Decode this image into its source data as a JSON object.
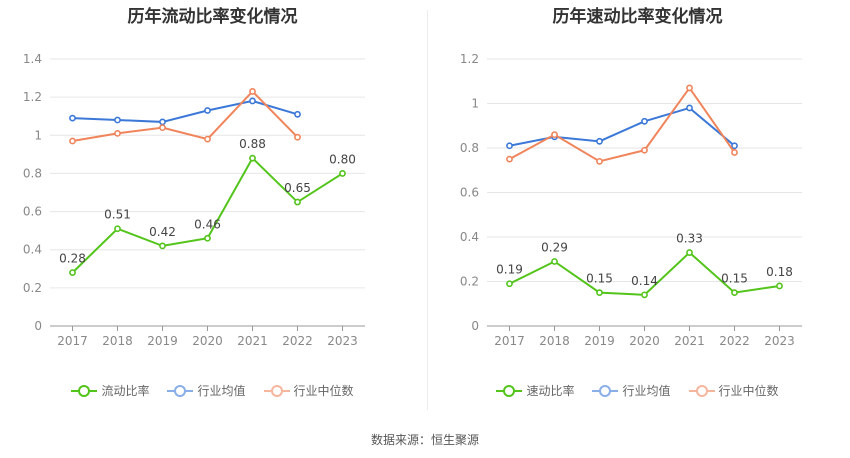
{
  "source_text": "数据来源：恒生聚源",
  "chart_data": [
    {
      "type": "line",
      "title": "历年流动比率变化情况",
      "categories": [
        "2017",
        "2018",
        "2019",
        "2020",
        "2021",
        "2022",
        "2023"
      ],
      "ylim": [
        0,
        1.4
      ],
      "yticks": [
        "0",
        "0.2",
        "0.4",
        "0.6",
        "0.8",
        "1",
        "1.2",
        "1.4"
      ],
      "grid": true,
      "legend": "bottom",
      "series": [
        {
          "name": "流动比率",
          "color": "#52c41a",
          "values": [
            0.28,
            0.51,
            0.42,
            0.46,
            0.88,
            0.65,
            0.8
          ],
          "labels": [
            "0.28",
            "0.51",
            "0.42",
            "0.46",
            "0.88",
            "0.65",
            "0.80"
          ]
        },
        {
          "name": "行业均值",
          "color": "#3b78d8",
          "values": [
            1.09,
            1.08,
            1.07,
            1.13,
            1.18,
            1.11,
            null
          ]
        },
        {
          "name": "行业中位数",
          "color": "#f0845b",
          "values": [
            0.97,
            1.01,
            1.04,
            0.98,
            1.23,
            0.99,
            null
          ]
        }
      ]
    },
    {
      "type": "line",
      "title": "历年速动比率变化情况",
      "categories": [
        "2017",
        "2018",
        "2019",
        "2020",
        "2021",
        "2022",
        "2023"
      ],
      "ylim": [
        0,
        1.2
      ],
      "yticks": [
        "0",
        "0.2",
        "0.4",
        "0.6",
        "0.8",
        "1",
        "1.2"
      ],
      "grid": true,
      "legend": "bottom",
      "series": [
        {
          "name": "速动比率",
          "color": "#52c41a",
          "values": [
            0.19,
            0.29,
            0.15,
            0.14,
            0.33,
            0.15,
            0.18
          ],
          "labels": [
            "0.19",
            "0.29",
            "0.15",
            "0.14",
            "0.33",
            "0.15",
            "0.18"
          ]
        },
        {
          "name": "行业均值",
          "color": "#3b78d8",
          "values": [
            0.81,
            0.85,
            0.83,
            0.92,
            0.98,
            0.81,
            null
          ]
        },
        {
          "name": "行业中位数",
          "color": "#f0845b",
          "values": [
            0.75,
            0.86,
            0.74,
            0.79,
            1.07,
            0.78,
            null
          ]
        }
      ]
    }
  ]
}
